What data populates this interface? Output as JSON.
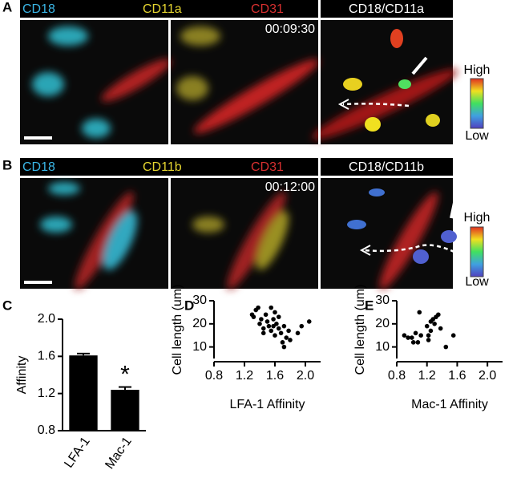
{
  "panels": [
    {
      "letter": "A",
      "channels": [
        "CD18",
        "CD11a",
        "CD31",
        "CD18/CD11a"
      ],
      "timestamp": "00:09:30",
      "scale": [
        "High",
        "Low"
      ]
    },
    {
      "letter": "B",
      "channels": [
        "CD18",
        "CD11b",
        "CD31",
        "CD18/CD11b"
      ],
      "timestamp": "00:12:00",
      "scale": [
        "High",
        "Low"
      ]
    }
  ],
  "chart_data": [
    {
      "type": "bar",
      "panel": "C",
      "ylabel": "Affinity",
      "categories": [
        "LFA-1",
        "Mac-1"
      ],
      "values": [
        1.61,
        1.24
      ],
      "errors": [
        0.02,
        0.03
      ],
      "color": "#000000",
      "annotation": "*",
      "ylim": [
        0.8,
        2.0
      ],
      "yticks": [
        0.8,
        1.2,
        1.6,
        {
          "value": 2,
          "label": "2.0"
        }
      ]
    },
    {
      "type": "scatter",
      "panel": "D",
      "xlabel": "LFA-1 Affinity",
      "ylabel": "Cell length (um)",
      "color": "#000000",
      "x": [
        1.3,
        1.32,
        1.35,
        1.38,
        1.4,
        1.42,
        1.45,
        1.48,
        1.5,
        1.52,
        1.55,
        1.55,
        1.58,
        1.6,
        1.6,
        1.62,
        1.65,
        1.65,
        1.68,
        1.7,
        1.72,
        1.72,
        1.75,
        1.78,
        1.8,
        1.9,
        1.95,
        2.05,
        1.45,
        1.58
      ],
      "values": [
        24,
        23,
        26,
        27,
        20,
        22,
        18,
        24,
        21,
        19,
        27,
        17,
        22,
        25,
        15,
        20,
        18,
        23,
        16,
        12,
        19,
        10,
        14,
        17,
        13,
        16,
        19,
        21,
        16,
        19
      ],
      "xlim": [
        0.8,
        2.2
      ],
      "xticks": [
        0.8,
        1.2,
        1.6,
        {
          "value": 2,
          "label": "2.0"
        }
      ],
      "ylim": [
        5,
        30
      ],
      "yticks": [
        10,
        20,
        30
      ]
    },
    {
      "type": "scatter",
      "panel": "E",
      "xlabel": "Mac-1 Affinity",
      "ylabel": "Cell length (um)",
      "color": "#000000",
      "x": [
        0.9,
        0.95,
        1.0,
        1.02,
        1.05,
        1.08,
        1.1,
        1.12,
        1.2,
        1.22,
        1.25,
        1.25,
        1.28,
        1.3,
        1.32,
        1.35,
        1.38,
        1.45,
        1.55,
        1.22
      ],
      "values": [
        15,
        14,
        14,
        12,
        16,
        12,
        25,
        15,
        19,
        15,
        17,
        21,
        22,
        20,
        23,
        24,
        18,
        10,
        15,
        13
      ],
      "xlim": [
        0.8,
        2.2
      ],
      "xticks": [
        0.8,
        1.2,
        1.6,
        {
          "value": 2,
          "label": "2.0"
        }
      ],
      "ylim": [
        5,
        30
      ],
      "yticks": [
        10,
        20,
        30
      ]
    }
  ]
}
